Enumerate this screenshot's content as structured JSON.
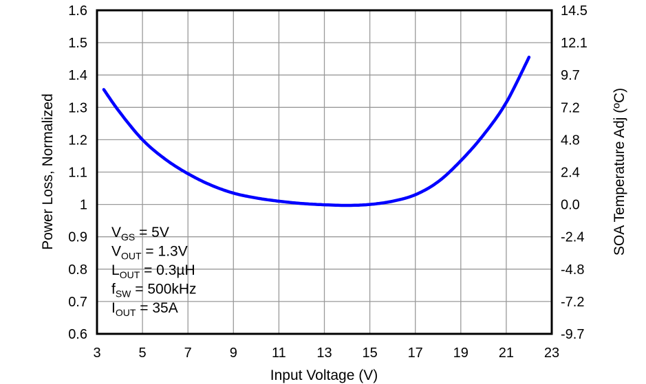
{
  "chart_data": {
    "type": "line",
    "title": "",
    "xlabel": "Input Voltage (V)",
    "ylabel": "Power Loss, Normalized",
    "y2label": "SOA Temperature Adj (ºC)",
    "xlim": [
      3,
      23
    ],
    "ylim": [
      0.6,
      1.6
    ],
    "x_ticks": [
      "3",
      "5",
      "7",
      "9",
      "11",
      "13",
      "15",
      "17",
      "19",
      "21",
      "23"
    ],
    "y_ticks": [
      "0.6",
      "0.7",
      "0.8",
      "0.9",
      "1",
      "1.1",
      "1.2",
      "1.3",
      "1.4",
      "1.5",
      "1.6"
    ],
    "y2_ticks": [
      "-9.7",
      "-7.2",
      "-4.8",
      "-2.4",
      "0.0",
      "2.4",
      "4.8",
      "7.2",
      "9.7",
      "12.1",
      "14.5"
    ],
    "grid": true,
    "legend_position": "none",
    "series": [
      {
        "name": "Power Loss",
        "color": "#0000ff",
        "x": [
          3.3,
          4.0,
          5.0,
          6.0,
          7.0,
          8.0,
          9.0,
          10.0,
          11.0,
          12.0,
          13.0,
          14.0,
          15.0,
          16.0,
          17.0,
          18.0,
          19.0,
          20.0,
          21.0,
          22.0
        ],
        "values": [
          1.355,
          1.285,
          1.2,
          1.14,
          1.095,
          1.06,
          1.035,
          1.02,
          1.01,
          1.003,
          0.999,
          0.997,
          1.0,
          1.01,
          1.03,
          1.07,
          1.135,
          1.215,
          1.315,
          1.455
        ]
      }
    ],
    "annotations": [
      {
        "main": "V",
        "sub": "GS",
        "rest": " = 5V"
      },
      {
        "main": "V",
        "sub": "OUT",
        "rest": " = 1.3V"
      },
      {
        "main": "L",
        "sub": "OUT",
        "rest": " = 0.3µH"
      },
      {
        "main": "f",
        "sub": "SW",
        "rest": " = 500kHz"
      },
      {
        "main": "I",
        "sub": "OUT",
        "rest": " = 35A"
      }
    ]
  },
  "colors": {
    "curve": "#0000ff",
    "grid": "#999999",
    "frame": "#000000",
    "background": "#ffffff"
  }
}
